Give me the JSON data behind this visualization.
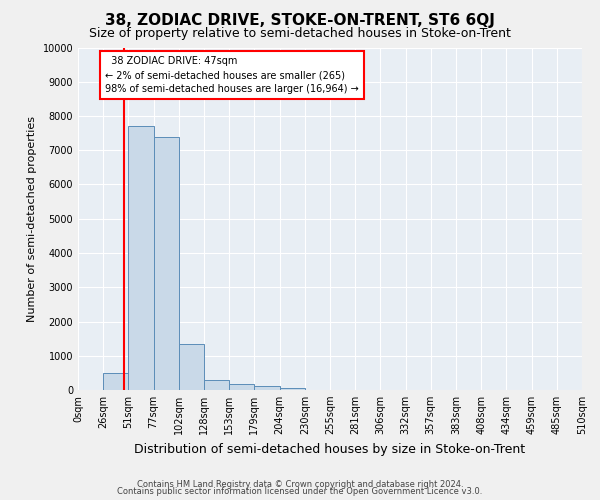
{
  "title": "38, ZODIAC DRIVE, STOKE-ON-TRENT, ST6 6QJ",
  "subtitle": "Size of property relative to semi-detached houses in Stoke-on-Trent",
  "xlabel": "Distribution of semi-detached houses by size in Stoke-on-Trent",
  "ylabel": "Number of semi-detached properties",
  "footer1": "Contains HM Land Registry data © Crown copyright and database right 2024.",
  "footer2": "Contains public sector information licensed under the Open Government Licence v3.0.",
  "bar_labels": [
    "0sqm",
    "26sqm",
    "51sqm",
    "77sqm",
    "102sqm",
    "128sqm",
    "153sqm",
    "179sqm",
    "204sqm",
    "230sqm",
    "255sqm",
    "281sqm",
    "306sqm",
    "332sqm",
    "357sqm",
    "383sqm",
    "408sqm",
    "434sqm",
    "459sqm",
    "485sqm",
    "510sqm"
  ],
  "bar_values": [
    0,
    500,
    7700,
    7400,
    1350,
    280,
    170,
    130,
    70,
    5,
    2,
    1,
    0,
    0,
    0,
    0,
    0,
    0,
    0,
    0,
    0
  ],
  "bar_color": "#c9d9e8",
  "bar_edge_color": "#5b8db8",
  "ylim": [
    0,
    10000
  ],
  "yticks": [
    0,
    1000,
    2000,
    3000,
    4000,
    5000,
    6000,
    7000,
    8000,
    9000,
    10000
  ],
  "annotation_line1": "38 ZODIAC DRIVE: 47sqm",
  "annotation_line2": "← 2% of semi-detached houses are smaller (265)",
  "annotation_line3": "98% of semi-detached houses are larger (16,964) →",
  "vline_x": 47,
  "plot_bg_color": "#e8eef4",
  "fig_bg_color": "#f0f0f0",
  "grid_color": "#ffffff",
  "title_fontsize": 11,
  "subtitle_fontsize": 9,
  "ylabel_fontsize": 8,
  "xlabel_fontsize": 9,
  "tick_fontsize": 7,
  "annotation_fontsize": 7,
  "footer_fontsize": 6
}
